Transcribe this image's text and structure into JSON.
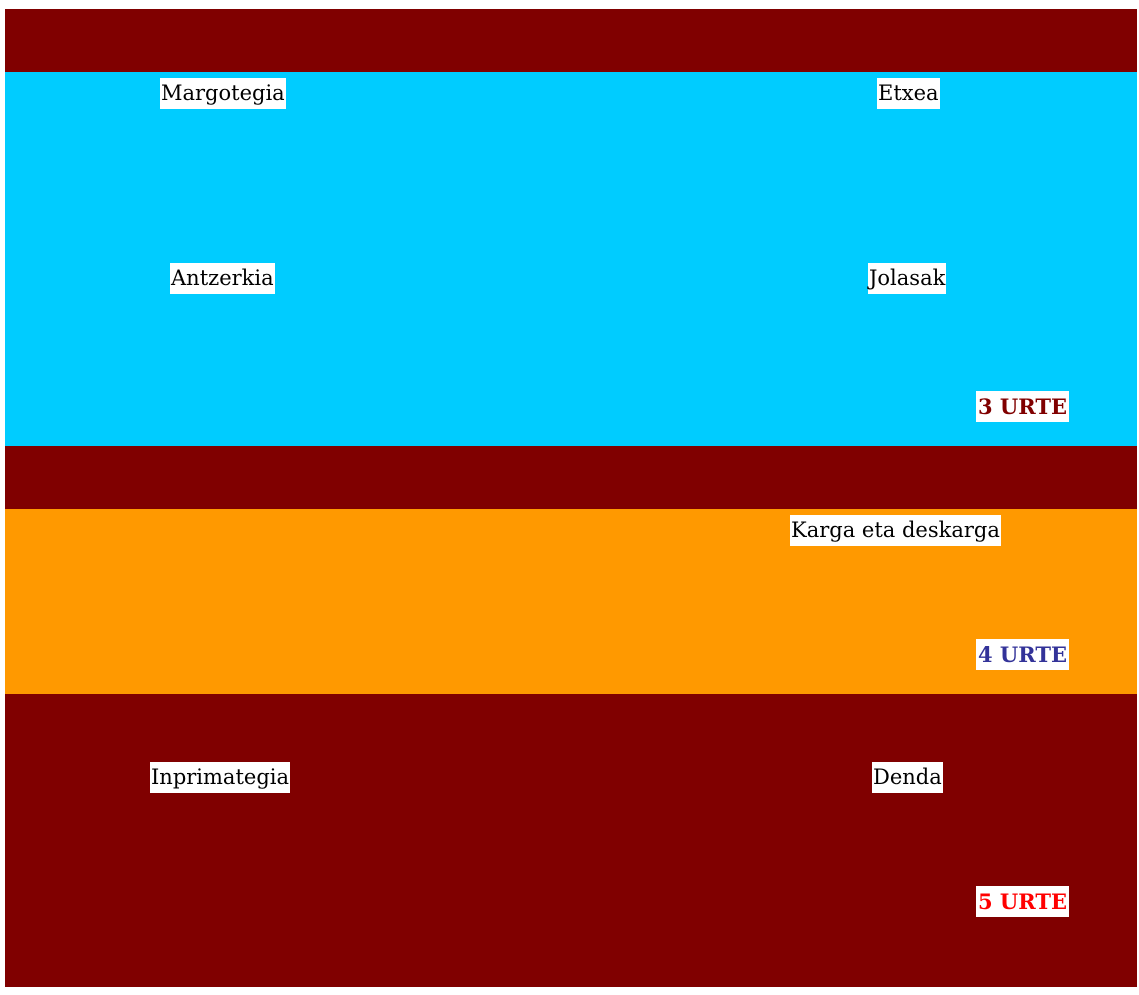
{
  "sections": {
    "three": {
      "links": [
        "Margotegia",
        "Etxea",
        "Antzerkia",
        "Jolasak"
      ],
      "age_label": "3 URTE",
      "age_color": "#800000",
      "background": "#00ccff"
    },
    "four": {
      "links": [
        "Karga eta deskarga"
      ],
      "age_label": "4 URTE",
      "age_color": "#333399",
      "background": "#ff9900"
    },
    "five": {
      "links": [
        "Inprimategia",
        "Denda"
      ],
      "age_label": "5 URTE",
      "age_color": "#ff0000",
      "background": "#800000"
    }
  },
  "bar_color": "#800000"
}
